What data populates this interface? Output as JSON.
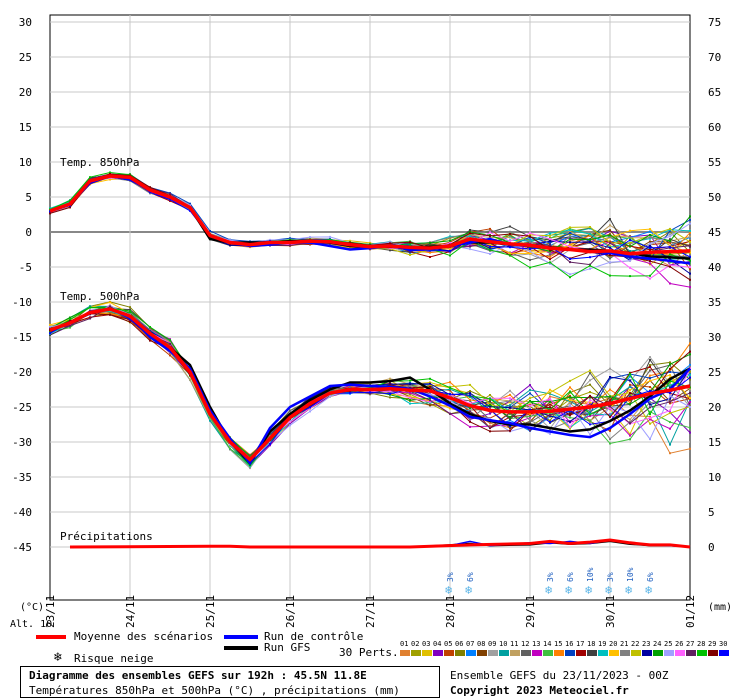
{
  "chart_data": {
    "type": "line",
    "left_axis": {
      "unit": "(°C)",
      "ticks": [
        30,
        25,
        20,
        15,
        10,
        5,
        0,
        -5,
        -10,
        -15,
        -20,
        -25,
        -30,
        -35,
        -40,
        -45
      ]
    },
    "right_axis": {
      "unit": "(mm)",
      "ticks": [
        75,
        70,
        65,
        60,
        55,
        50,
        45,
        40,
        35,
        30,
        25,
        20,
        15,
        10,
        5,
        0
      ]
    },
    "x_axis": {
      "ticks": [
        "23/11",
        "24/11",
        "25/11",
        "26/11",
        "27/11",
        "28/11",
        "29/11",
        "30/11",
        "01/12"
      ],
      "range_hours": [
        0,
        192
      ]
    },
    "alt_label": "Alt. 10",
    "panel_labels": {
      "t850": "Temp. 850hPa",
      "t500": "Temp. 500hPa",
      "precip": "Précipitations"
    },
    "snow_risk": [
      {
        "hour": 120,
        "pct": "3%"
      },
      {
        "hour": 126,
        "pct": "6%"
      },
      {
        "hour": 150,
        "pct": "3%"
      },
      {
        "hour": 156,
        "pct": "6%"
      },
      {
        "hour": 162,
        "pct": "10%"
      },
      {
        "hour": 168,
        "pct": "3%"
      },
      {
        "hour": 174,
        "pct": "10%"
      },
      {
        "hour": 180,
        "pct": "6%"
      }
    ],
    "series": [
      {
        "name": "Moyenne des scénarios",
        "color": "#ff0000",
        "t850": [
          [
            0,
            3
          ],
          [
            6,
            4
          ],
          [
            12,
            7.3
          ],
          [
            18,
            8
          ],
          [
            24,
            7.8
          ],
          [
            30,
            6
          ],
          [
            36,
            5
          ],
          [
            42,
            3.5
          ],
          [
            48,
            -0.5
          ],
          [
            54,
            -1.5
          ],
          [
            60,
            -1.8
          ],
          [
            66,
            -1.5
          ],
          [
            72,
            -1.5
          ],
          [
            78,
            -1.3
          ],
          [
            84,
            -1.4
          ],
          [
            90,
            -1.8
          ],
          [
            96,
            -2.1
          ],
          [
            102,
            -2.0
          ],
          [
            108,
            -2.2
          ],
          [
            114,
            -2.3
          ],
          [
            120,
            -2.0
          ],
          [
            126,
            -1.0
          ],
          [
            132,
            -1.4
          ],
          [
            138,
            -1.7
          ],
          [
            144,
            -1.9
          ],
          [
            150,
            -2.3
          ],
          [
            156,
            -2.5
          ],
          [
            162,
            -2.8
          ],
          [
            168,
            -2.7
          ],
          [
            174,
            -3.1
          ],
          [
            180,
            -2.9
          ],
          [
            186,
            -2.8
          ],
          [
            192,
            -2.7
          ]
        ],
        "t500": [
          [
            0,
            -14
          ],
          [
            6,
            -13
          ],
          [
            12,
            -11.5
          ],
          [
            18,
            -11
          ],
          [
            24,
            -12
          ],
          [
            30,
            -14.5
          ],
          [
            36,
            -16.5
          ],
          [
            42,
            -20
          ],
          [
            48,
            -26
          ],
          [
            54,
            -30
          ],
          [
            60,
            -32.5
          ],
          [
            66,
            -29.5
          ],
          [
            72,
            -26.5
          ],
          [
            78,
            -24.5
          ],
          [
            84,
            -23
          ],
          [
            90,
            -22.5
          ],
          [
            96,
            -22.5
          ],
          [
            102,
            -22.4
          ],
          [
            108,
            -22.6
          ],
          [
            114,
            -22.7
          ],
          [
            120,
            -23.7
          ],
          [
            126,
            -24.8
          ],
          [
            132,
            -25.5
          ],
          [
            138,
            -25.7
          ],
          [
            144,
            -25.7
          ],
          [
            150,
            -25.6
          ],
          [
            156,
            -25.3
          ],
          [
            162,
            -25
          ],
          [
            168,
            -24.5
          ],
          [
            174,
            -23.8
          ],
          [
            180,
            -23.1
          ],
          [
            186,
            -22.6
          ],
          [
            192,
            -22
          ]
        ],
        "precip": [
          [
            6,
            0
          ],
          [
            48,
            0.1
          ],
          [
            54,
            0.1
          ],
          [
            60,
            0
          ],
          [
            108,
            0
          ],
          [
            126,
            0.3
          ],
          [
            144,
            0.5
          ],
          [
            150,
            0.8
          ],
          [
            156,
            0.5
          ],
          [
            162,
            0.7
          ],
          [
            168,
            1
          ],
          [
            174,
            0.6
          ],
          [
            180,
            0.3
          ],
          [
            186,
            0.3
          ],
          [
            192,
            0
          ]
        ]
      },
      {
        "name": "Run de contrôle",
        "color": "#0000ff",
        "t850": [
          [
            0,
            3
          ],
          [
            6,
            4
          ],
          [
            12,
            7
          ],
          [
            18,
            8
          ],
          [
            24,
            7.5
          ],
          [
            30,
            6
          ],
          [
            36,
            5
          ],
          [
            42,
            3.5
          ],
          [
            48,
            -0.5
          ],
          [
            54,
            -1.5
          ],
          [
            60,
            -2
          ],
          [
            66,
            -1.8
          ],
          [
            72,
            -1.5
          ],
          [
            78,
            -1.5
          ],
          [
            84,
            -2
          ],
          [
            90,
            -2.5
          ],
          [
            96,
            -2.3
          ],
          [
            102,
            -2
          ],
          [
            108,
            -2.5
          ],
          [
            114,
            -2.5
          ],
          [
            120,
            -2
          ],
          [
            126,
            -1.5
          ],
          [
            132,
            -1
          ],
          [
            138,
            -1.8
          ],
          [
            144,
            -2
          ],
          [
            150,
            -2.3
          ],
          [
            156,
            -2.5
          ],
          [
            162,
            -2.8
          ],
          [
            168,
            -3
          ],
          [
            174,
            -3.5
          ],
          [
            180,
            -3.8
          ],
          [
            186,
            -4.1
          ],
          [
            192,
            -4.5
          ]
        ],
        "t500": [
          [
            0,
            -14
          ],
          [
            6,
            -13
          ],
          [
            12,
            -11.5
          ],
          [
            18,
            -11
          ],
          [
            24,
            -12
          ],
          [
            30,
            -15
          ],
          [
            36,
            -17
          ],
          [
            42,
            -19.5
          ],
          [
            48,
            -25.5
          ],
          [
            54,
            -29.5
          ],
          [
            60,
            -33
          ],
          [
            66,
            -28
          ],
          [
            72,
            -25
          ],
          [
            78,
            -23.5
          ],
          [
            84,
            -22
          ],
          [
            90,
            -21.8
          ],
          [
            96,
            -22
          ],
          [
            102,
            -22.1
          ],
          [
            108,
            -22.4
          ],
          [
            114,
            -23.5
          ],
          [
            120,
            -24.8
          ],
          [
            126,
            -26.4
          ],
          [
            132,
            -26.9
          ],
          [
            138,
            -27.3
          ],
          [
            144,
            -28
          ],
          [
            150,
            -28.5
          ],
          [
            156,
            -29
          ],
          [
            162,
            -29.3
          ],
          [
            168,
            -28
          ],
          [
            174,
            -26
          ],
          [
            180,
            -23.8
          ],
          [
            186,
            -22.5
          ],
          [
            192,
            -19.5
          ]
        ],
        "precip": [
          [
            108,
            0
          ],
          [
            120,
            0.2
          ],
          [
            126,
            0.8
          ],
          [
            132,
            0.2
          ],
          [
            144,
            0.6
          ],
          [
            150,
            0.5
          ],
          [
            156,
            0.8
          ],
          [
            162,
            0.5
          ],
          [
            168,
            1.0
          ],
          [
            174,
            0.6
          ],
          [
            180,
            0.3
          ],
          [
            186,
            0.2
          ],
          [
            192,
            0
          ]
        ]
      },
      {
        "name": "Run GFS",
        "color": "#000000",
        "t850": [
          [
            0,
            3
          ],
          [
            6,
            4
          ],
          [
            12,
            7
          ],
          [
            18,
            8
          ],
          [
            24,
            7.5
          ],
          [
            30,
            6
          ],
          [
            36,
            5
          ],
          [
            42,
            3.5
          ],
          [
            48,
            -1
          ],
          [
            54,
            -1.5
          ],
          [
            60,
            -1.5
          ],
          [
            66,
            -1.5
          ],
          [
            72,
            -1.3
          ],
          [
            78,
            -1.3
          ],
          [
            84,
            -1.5
          ],
          [
            90,
            -2
          ],
          [
            96,
            -2.2
          ],
          [
            102,
            -2.1
          ],
          [
            108,
            -2.2
          ],
          [
            114,
            -2.1
          ],
          [
            120,
            -2
          ],
          [
            126,
            -1.5
          ],
          [
            132,
            -1.5
          ],
          [
            138,
            -1.8
          ],
          [
            144,
            -2
          ],
          [
            150,
            -2.2
          ],
          [
            156,
            -2.5
          ],
          [
            162,
            -2.5
          ],
          [
            168,
            -2.7
          ],
          [
            174,
            -3
          ],
          [
            180,
            -3.5
          ],
          [
            186,
            -3.6
          ],
          [
            192,
            -3.8
          ]
        ],
        "t500": [
          [
            0,
            -14
          ],
          [
            6,
            -13
          ],
          [
            12,
            -11.5
          ],
          [
            18,
            -11
          ],
          [
            24,
            -12
          ],
          [
            30,
            -15
          ],
          [
            36,
            -16.5
          ],
          [
            42,
            -19
          ],
          [
            48,
            -25
          ],
          [
            54,
            -30
          ],
          [
            60,
            -33
          ],
          [
            66,
            -28.5
          ],
          [
            72,
            -26
          ],
          [
            78,
            -24
          ],
          [
            84,
            -22.5
          ],
          [
            90,
            -21.5
          ],
          [
            96,
            -21.5
          ],
          [
            102,
            -21.3
          ],
          [
            108,
            -20.8
          ],
          [
            114,
            -22.5
          ],
          [
            120,
            -24.5
          ],
          [
            126,
            -26
          ],
          [
            132,
            -27
          ],
          [
            138,
            -27.5
          ],
          [
            144,
            -27.5
          ],
          [
            150,
            -28
          ],
          [
            156,
            -28.5
          ],
          [
            162,
            -28.2
          ],
          [
            168,
            -27
          ],
          [
            174,
            -25.5
          ],
          [
            180,
            -23.5
          ],
          [
            186,
            -21
          ],
          [
            192,
            -19.5
          ]
        ],
        "precip": [
          [
            108,
            0
          ],
          [
            120,
            0.3
          ],
          [
            126,
            0.5
          ],
          [
            132,
            0.2
          ],
          [
            144,
            0.3
          ],
          [
            150,
            0.6
          ],
          [
            156,
            0.4
          ],
          [
            162,
            0.5
          ],
          [
            168,
            0.8
          ],
          [
            174,
            0.4
          ],
          [
            180,
            0.2
          ],
          [
            186,
            0.2
          ],
          [
            192,
            0
          ]
        ]
      }
    ],
    "ensemble_count": 30,
    "perturbation_colors": [
      "#e08030",
      "#a0a000",
      "#e0c000",
      "#8000c0",
      "#c04000",
      "#808000",
      "#0080ff",
      "#804000",
      "#a0a0a0",
      "#00a0a0",
      "#c0a060",
      "#606060",
      "#c000c0",
      "#40c040",
      "#ff8000",
      "#0040c0",
      "#a00000",
      "#404040",
      "#00c0c0",
      "#ffc000",
      "#808080",
      "#c0c000",
      "#0000a0",
      "#00a000",
      "#a0a0ff",
      "#ff60ff",
      "#602060",
      "#00c000",
      "#800000",
      "#0000ff"
    ]
  },
  "legend": {
    "mean": "Moyenne des scénarios",
    "control": "Run de contrôle",
    "gfs": "Run GFS",
    "snow": "Risque neige",
    "perts": "30 Perts.",
    "pert_numbers": [
      "01",
      "02",
      "03",
      "04",
      "05",
      "06",
      "07",
      "08",
      "09",
      "10",
      "11",
      "12",
      "13",
      "14",
      "15",
      "16",
      "17",
      "18",
      "19",
      "20",
      "21",
      "22",
      "23",
      "24",
      "25",
      "26",
      "27",
      "28",
      "29",
      "30"
    ],
    "colors": {
      "mean": "#ff0000",
      "control": "#0000ff",
      "gfs": "#000000",
      "snow": "#5ab4e6"
    }
  },
  "footer": {
    "title": "Diagramme des ensembles GEFS sur 192h : 45.5N 11.8E",
    "subtitle": "Températures 850hPa et 500hPa (°C) , précipitations (mm)",
    "ensemble_run": "Ensemble GEFS du 23/11/2023 - 00Z",
    "copyright": "Copyright 2023 Meteociel.fr"
  }
}
